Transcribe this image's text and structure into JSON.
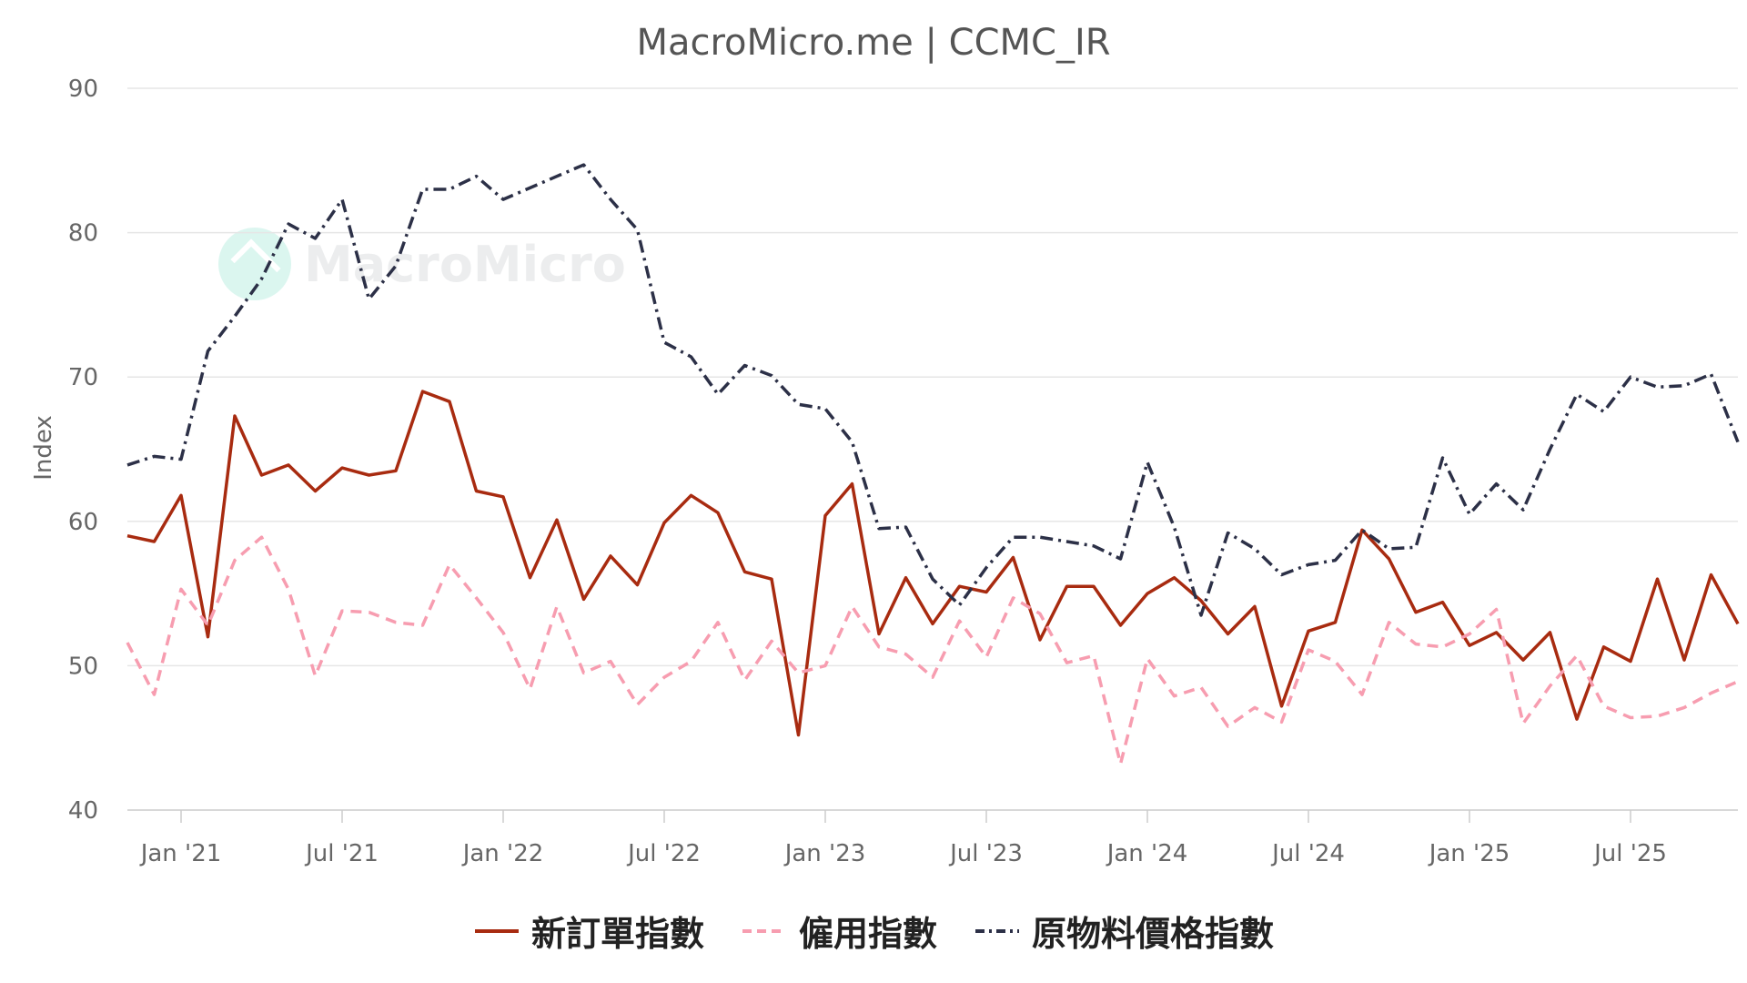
{
  "chart_data": {
    "type": "line",
    "title": "MacroMicro.me | CCMC_IR",
    "ylabel": "Index",
    "ylim": [
      40,
      90
    ],
    "yticks": [
      40,
      50,
      60,
      70,
      80,
      90
    ],
    "grid": true,
    "legend_position": "bottom",
    "x_start": "2020-11",
    "x_end": "2025-11",
    "xticks": [
      {
        "label": "Jan '21",
        "date": "2021-01"
      },
      {
        "label": "Jul '21",
        "date": "2021-07"
      },
      {
        "label": "Jan '22",
        "date": "2022-01"
      },
      {
        "label": "Jul '22",
        "date": "2022-07"
      },
      {
        "label": "Jan '23",
        "date": "2023-01"
      },
      {
        "label": "Jul '23",
        "date": "2023-07"
      },
      {
        "label": "Jan '24",
        "date": "2024-01"
      },
      {
        "label": "Jul '24",
        "date": "2024-07"
      },
      {
        "label": "Jan '25",
        "date": "2025-01"
      },
      {
        "label": "Jul '25",
        "date": "2025-07"
      }
    ],
    "x": [
      "2020-11",
      "2020-12",
      "2021-01",
      "2021-02",
      "2021-03",
      "2021-04",
      "2021-05",
      "2021-06",
      "2021-07",
      "2021-08",
      "2021-09",
      "2021-10",
      "2021-11",
      "2021-12",
      "2022-01",
      "2022-02",
      "2022-03",
      "2022-04",
      "2022-05",
      "2022-06",
      "2022-07",
      "2022-08",
      "2022-09",
      "2022-10",
      "2022-11",
      "2022-12",
      "2023-01",
      "2023-02",
      "2023-03",
      "2023-04",
      "2023-05",
      "2023-06",
      "2023-07",
      "2023-08",
      "2023-09",
      "2023-10",
      "2023-11",
      "2023-12",
      "2024-01",
      "2024-02",
      "2024-03",
      "2024-04",
      "2024-05",
      "2024-06",
      "2024-07",
      "2024-08",
      "2024-09",
      "2024-10",
      "2024-11",
      "2024-12",
      "2025-01",
      "2025-02",
      "2025-03",
      "2025-04",
      "2025-05",
      "2025-06",
      "2025-07",
      "2025-08",
      "2025-09",
      "2025-10",
      "2025-11"
    ],
    "series": [
      {
        "name": "新訂單指數",
        "color": "#a82b10",
        "dash": "solid",
        "values": [
          59.0,
          58.6,
          61.8,
          52.0,
          67.3,
          63.2,
          63.9,
          62.1,
          63.7,
          63.2,
          63.5,
          69.0,
          68.3,
          62.1,
          61.7,
          56.1,
          60.1,
          54.6,
          57.6,
          55.6,
          59.9,
          61.8,
          60.6,
          56.5,
          56.0,
          45.2,
          60.4,
          62.6,
          52.2,
          56.1,
          52.9,
          55.5,
          55.1,
          57.5,
          51.8,
          55.5,
          55.5,
          52.8,
          55.0,
          56.1,
          54.5,
          52.2,
          54.1,
          47.2,
          52.4,
          53.0,
          59.4,
          57.4,
          53.7,
          54.4,
          51.4,
          52.3,
          50.4,
          52.3,
          46.3,
          51.3,
          50.3,
          56.0,
          50.4,
          56.3,
          52.9
        ]
      },
      {
        "name": "僱用指數",
        "color": "#f79db0",
        "dash": "dashed",
        "values": [
          51.6,
          48.0,
          55.3,
          52.8,
          57.3,
          58.9,
          55.3,
          49.3,
          53.8,
          53.7,
          53.0,
          52.8,
          57.0,
          54.7,
          52.3,
          48.4,
          54.1,
          49.5,
          50.3,
          47.3,
          49.2,
          50.3,
          53.0,
          49.0,
          51.7,
          49.5,
          50.0,
          54.1,
          51.3,
          50.8,
          49.2,
          53.1,
          50.6,
          54.7,
          53.6,
          50.2,
          50.7,
          43.2,
          50.5,
          47.9,
          48.5,
          45.8,
          47.1,
          46.1,
          51.1,
          50.3,
          48.0,
          53.0,
          51.5,
          51.3,
          52.2,
          53.9,
          46.0,
          48.6,
          50.7,
          47.2,
          46.4,
          46.5,
          47.1,
          48.1,
          48.9
        ]
      },
      {
        "name": "原物料價格指數",
        "color": "#2c3047",
        "dash": "dashdot",
        "values": [
          63.9,
          64.5,
          64.3,
          71.8,
          74.2,
          76.8,
          80.6,
          79.6,
          82.3,
          75.4,
          77.7,
          83.0,
          83.0,
          83.9,
          82.3,
          83.1,
          83.9,
          84.7,
          82.3,
          80.2,
          72.4,
          71.4,
          68.8,
          70.8,
          70.1,
          68.1,
          67.8,
          65.5,
          59.5,
          59.6,
          56.0,
          54.2,
          56.8,
          58.9,
          58.9,
          58.6,
          58.3,
          57.4,
          64.1,
          59.6,
          53.5,
          59.2,
          58.1,
          56.3,
          57.0,
          57.3,
          59.4,
          58.1,
          58.2,
          64.4,
          60.5,
          62.6,
          60.8,
          65.0,
          68.8,
          67.6,
          70.0,
          69.3,
          69.4,
          70.2,
          65.5
        ]
      }
    ]
  },
  "watermark_text": "MacroMicro"
}
